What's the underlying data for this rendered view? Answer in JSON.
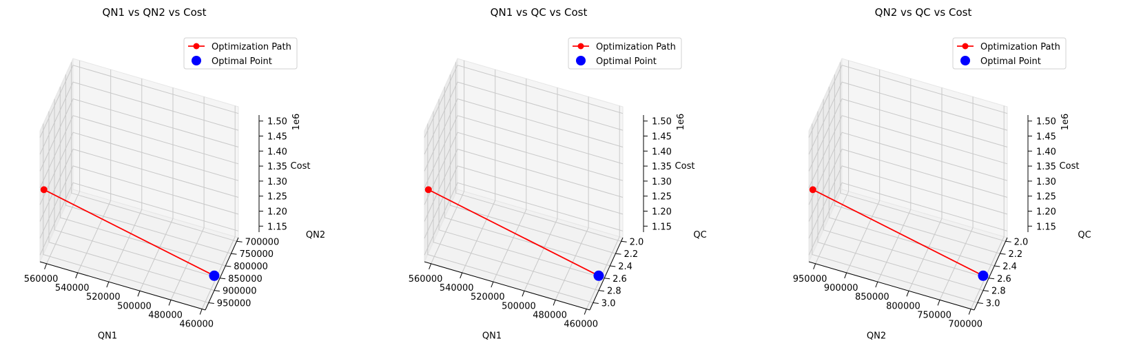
{
  "chart_data": [
    {
      "type": "line3d",
      "title": "QN1 vs QN2 vs Cost",
      "xlabel": "QN1",
      "ylabel": "QN2",
      "zlabel": "Cost",
      "z_offset_label": "1e6",
      "x_ticks": [
        "560000",
        "540000",
        "520000",
        "500000",
        "480000",
        "460000"
      ],
      "y_ticks": [
        "700000",
        "750000",
        "800000",
        "850000",
        "900000",
        "950000"
      ],
      "z_ticks": [
        "1.15",
        "1.20",
        "1.25",
        "1.30",
        "1.35",
        "1.40",
        "1.45",
        "1.50"
      ],
      "series": [
        {
          "name": "Optimization Path",
          "x": [
            570000,
            450000
          ],
          "y": [
            700000,
            700000
          ],
          "z": [
            1350000,
            1150000
          ],
          "color": "#ff0000"
        },
        {
          "name": "Optimal Point",
          "x": [
            450000
          ],
          "y": [
            700000
          ],
          "z": [
            1150000
          ],
          "color": "#0000ff"
        }
      ],
      "legend": "top-right",
      "grid": true
    },
    {
      "type": "line3d",
      "title": "QN1 vs QC vs Cost",
      "xlabel": "QN1",
      "ylabel": "QC",
      "zlabel": "Cost",
      "z_offset_label": "1e6",
      "x_ticks": [
        "560000",
        "540000",
        "520000",
        "500000",
        "480000",
        "460000"
      ],
      "y_ticks": [
        "2.0",
        "2.2",
        "2.4",
        "2.6",
        "2.8",
        "3.0"
      ],
      "z_ticks": [
        "1.15",
        "1.20",
        "1.25",
        "1.30",
        "1.35",
        "1.40",
        "1.45",
        "1.50"
      ],
      "series": [
        {
          "name": "Optimization Path",
          "x": [
            570000,
            450000
          ],
          "y": [
            2.0,
            2.0
          ],
          "z": [
            1350000,
            1150000
          ],
          "color": "#ff0000"
        },
        {
          "name": "Optimal Point",
          "x": [
            450000
          ],
          "y": [
            2.0
          ],
          "z": [
            1150000
          ],
          "color": "#0000ff"
        }
      ],
      "legend": "top-right",
      "grid": true
    },
    {
      "type": "line3d",
      "title": "QN2 vs QC vs Cost",
      "xlabel": "QN2",
      "ylabel": "QC",
      "zlabel": "Cost",
      "z_offset_label": "1e6",
      "x_ticks": [
        "950000",
        "900000",
        "850000",
        "800000",
        "750000",
        "700000"
      ],
      "y_ticks": [
        "2.0",
        "2.2",
        "2.4",
        "2.6",
        "2.8",
        "3.0"
      ],
      "z_ticks": [
        "1.15",
        "1.20",
        "1.25",
        "1.30",
        "1.35",
        "1.40",
        "1.45",
        "1.50"
      ],
      "series": [
        {
          "name": "Optimization Path",
          "x": [
            970000,
            700000
          ],
          "y": [
            2.0,
            2.0
          ],
          "z": [
            1350000,
            1150000
          ],
          "color": "#ff0000"
        },
        {
          "name": "Optimal Point",
          "x": [
            700000
          ],
          "y": [
            2.0
          ],
          "z": [
            1150000
          ],
          "color": "#0000ff"
        }
      ],
      "legend": "top-right",
      "grid": true
    }
  ]
}
